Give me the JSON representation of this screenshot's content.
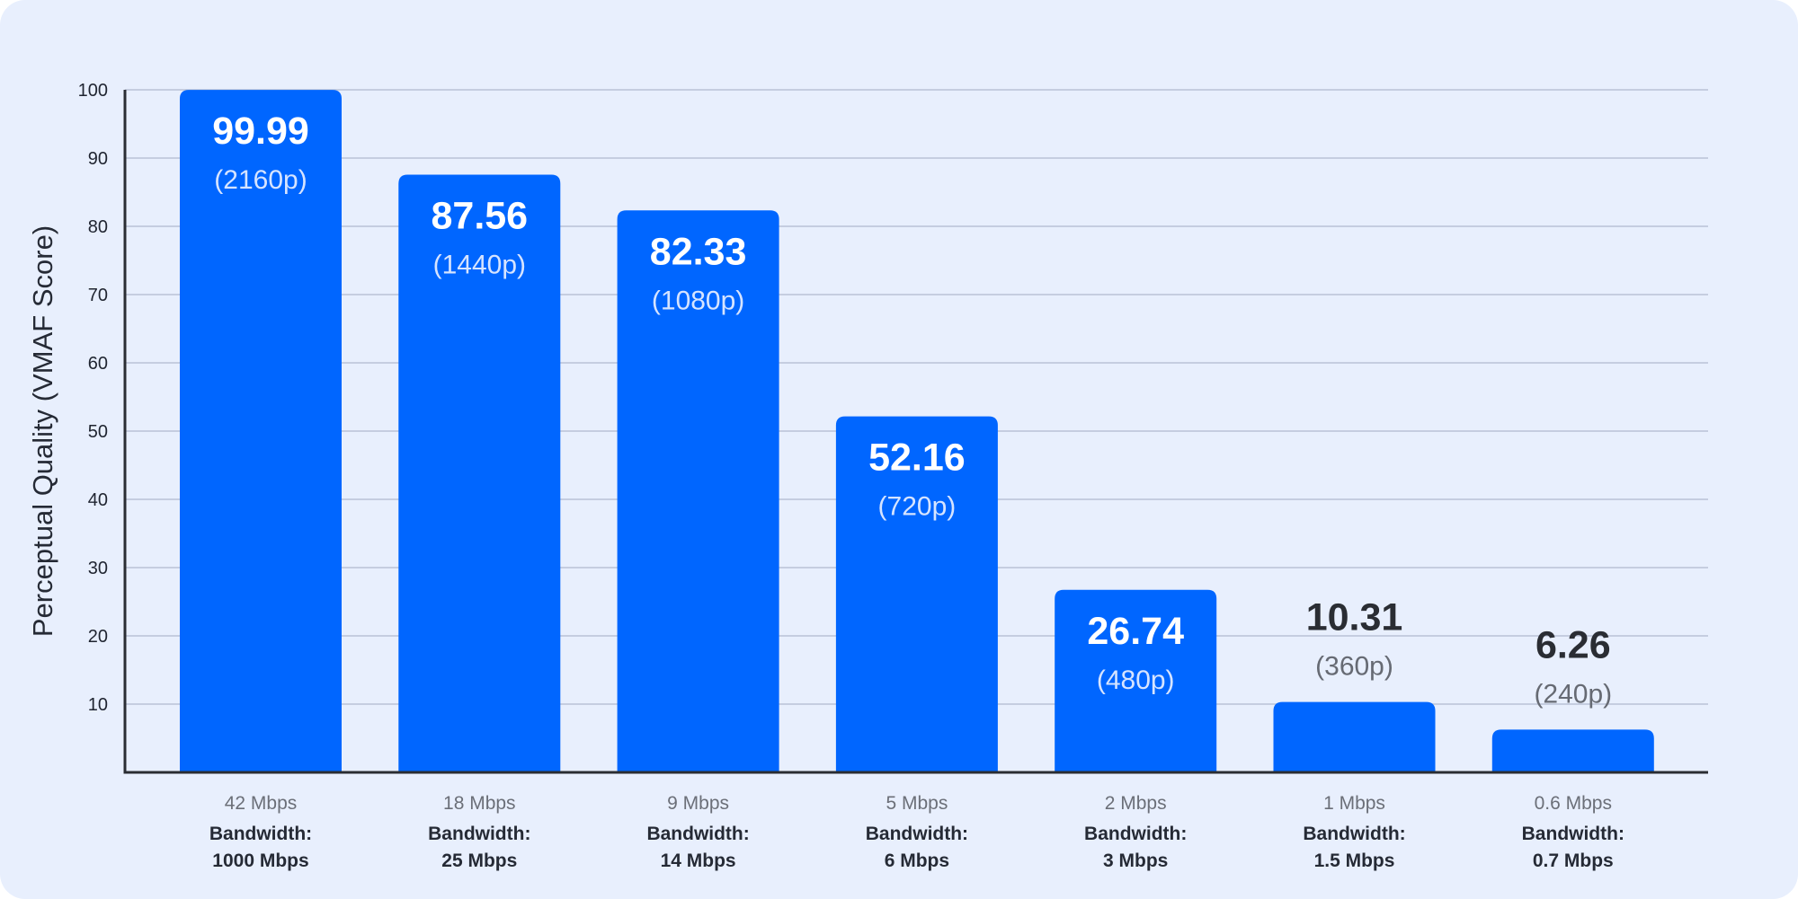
{
  "colors": {
    "background": "#e8effd",
    "bar": "#0066ff",
    "grid": "#b9c2d6",
    "axis": "#2a2d33",
    "label_on_bar": "#ffffff",
    "res_on_bar": "#d6e4ff",
    "label_above": "#2a2d33",
    "res_above": "#666a73"
  },
  "chart_data": {
    "type": "bar",
    "title": "",
    "xlabel": "",
    "ylabel": "Perceptual Quality (VMAF Score)",
    "ylim": [
      0,
      100
    ],
    "yticks": [
      10,
      20,
      30,
      40,
      50,
      60,
      70,
      80,
      90,
      100
    ],
    "grid": true,
    "categories": [
      "42 Mbps",
      "18 Mbps",
      "9 Mbps",
      "5 Mbps",
      "2 Mbps",
      "1 Mbps",
      "0.6 Mbps"
    ],
    "bandwidth_title": "Bandwidth:",
    "bandwidths": [
      "1000 Mbps",
      "25 Mbps",
      "14 Mbps",
      "6 Mbps",
      "3 Mbps",
      "1.5 Mbps",
      "0.7 Mbps"
    ],
    "values": [
      99.99,
      87.56,
      82.33,
      52.16,
      26.74,
      10.31,
      6.26
    ],
    "value_labels": [
      "99.99",
      "87.56",
      "82.33",
      "52.16",
      "26.74",
      "10.31",
      "6.26"
    ],
    "resolutions": [
      "(2160p)",
      "(1440p)",
      "(1080p)",
      "(720p)",
      "(480p)",
      "(360p)",
      "(240p)"
    ]
  }
}
